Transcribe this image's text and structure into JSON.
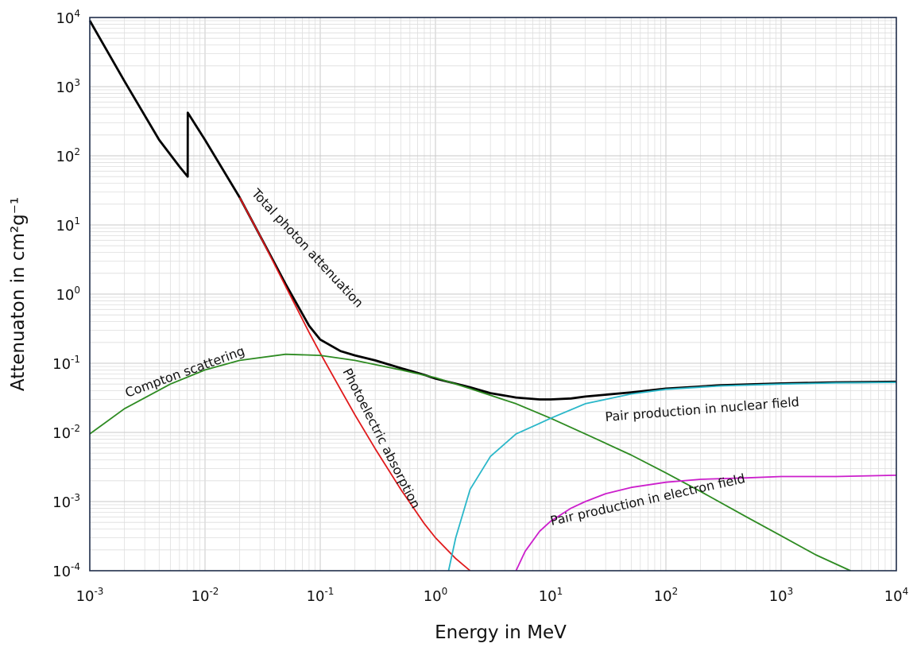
{
  "chart_data": {
    "type": "line",
    "xlabel": "Energy in MeV",
    "ylabel": "Attenuaton in cm²g⁻¹",
    "xscale": "log",
    "yscale": "log",
    "xlim": [
      0.001,
      10000
    ],
    "ylim": [
      0.0001,
      10000
    ],
    "grid": true,
    "legend": "none",
    "x_ticks": [
      {
        "base": "10",
        "exp": "-3"
      },
      {
        "base": "10",
        "exp": "-2"
      },
      {
        "base": "10",
        "exp": "-1"
      },
      {
        "base": "10",
        "exp": "0"
      },
      {
        "base": "10",
        "exp": "1"
      },
      {
        "base": "10",
        "exp": "2"
      },
      {
        "base": "10",
        "exp": "3"
      },
      {
        "base": "10",
        "exp": "4"
      }
    ],
    "y_ticks": [
      {
        "base": "10",
        "exp": "-4"
      },
      {
        "base": "10",
        "exp": "-3"
      },
      {
        "base": "10",
        "exp": "-2"
      },
      {
        "base": "10",
        "exp": "-1"
      },
      {
        "base": "10",
        "exp": "0"
      },
      {
        "base": "10",
        "exp": "1"
      },
      {
        "base": "10",
        "exp": "2"
      },
      {
        "base": "10",
        "exp": "3"
      },
      {
        "base": "10",
        "exp": "4"
      }
    ],
    "series": [
      {
        "name": "Total photon attenuation",
        "color": "#000000",
        "x": [
          0.001,
          0.002,
          0.004,
          0.006,
          0.00707,
          0.00708,
          0.01,
          0.02,
          0.03,
          0.05,
          0.08,
          0.1,
          0.15,
          0.2,
          0.3,
          0.5,
          0.8,
          1,
          2,
          3,
          5,
          8,
          10,
          15,
          20,
          50,
          100,
          300,
          1000,
          3000,
          10000
        ],
        "y": [
          9000,
          1200,
          170,
          70,
          50,
          420,
          170,
          25,
          7,
          1.4,
          0.35,
          0.22,
          0.15,
          0.13,
          0.11,
          0.085,
          0.068,
          0.06,
          0.045,
          0.037,
          0.032,
          0.03,
          0.03,
          0.031,
          0.033,
          0.038,
          0.043,
          0.048,
          0.051,
          0.053,
          0.054
        ]
      },
      {
        "name": "Photoelectric absorption",
        "color": "#e0191b",
        "x": [
          0.02,
          0.03,
          0.05,
          0.08,
          0.1,
          0.15,
          0.2,
          0.3,
          0.5,
          0.8,
          1,
          1.5,
          2
        ],
        "y": [
          25,
          7,
          1.3,
          0.28,
          0.14,
          0.042,
          0.018,
          0.0058,
          0.0015,
          0.00048,
          0.0003,
          0.00015,
          0.0001
        ]
      },
      {
        "name": "Compton scattering",
        "color": "#2e8b22",
        "x": [
          0.001,
          0.002,
          0.005,
          0.01,
          0.02,
          0.05,
          0.1,
          0.2,
          0.5,
          1,
          2,
          5,
          10,
          20,
          50,
          100,
          200,
          500,
          1000,
          2000,
          4000
        ],
        "y": [
          0.0095,
          0.022,
          0.05,
          0.08,
          0.11,
          0.135,
          0.13,
          0.11,
          0.08,
          0.062,
          0.043,
          0.026,
          0.016,
          0.0095,
          0.0047,
          0.0026,
          0.0014,
          0.0006,
          0.00032,
          0.00017,
          0.0001
        ]
      },
      {
        "name": "Pair production in nuclear field",
        "color": "#2ab7c9",
        "x": [
          1.3,
          1.5,
          2,
          3,
          5,
          8,
          10,
          20,
          50,
          100,
          300,
          1000,
          3000,
          10000
        ],
        "y": [
          0.0001,
          0.0003,
          0.0015,
          0.0045,
          0.0095,
          0.0135,
          0.016,
          0.026,
          0.036,
          0.042,
          0.047,
          0.05,
          0.052,
          0.053
        ]
      },
      {
        "name": "Pair production in electron field",
        "color": "#cc1fcc",
        "x": [
          5,
          6,
          8,
          10,
          15,
          20,
          30,
          50,
          100,
          200,
          500,
          1000,
          3000,
          10000
        ],
        "y": [
          0.0001,
          0.00019,
          0.00037,
          0.00052,
          0.0008,
          0.001,
          0.0013,
          0.0016,
          0.0019,
          0.0021,
          0.0022,
          0.0023,
          0.0023,
          0.0024
        ]
      }
    ],
    "annotations": [
      "Total photon attenuation",
      "Photoelectric absorption",
      "Compton scattering",
      "Pair production in nuclear field",
      "Pair production in electron field"
    ]
  }
}
